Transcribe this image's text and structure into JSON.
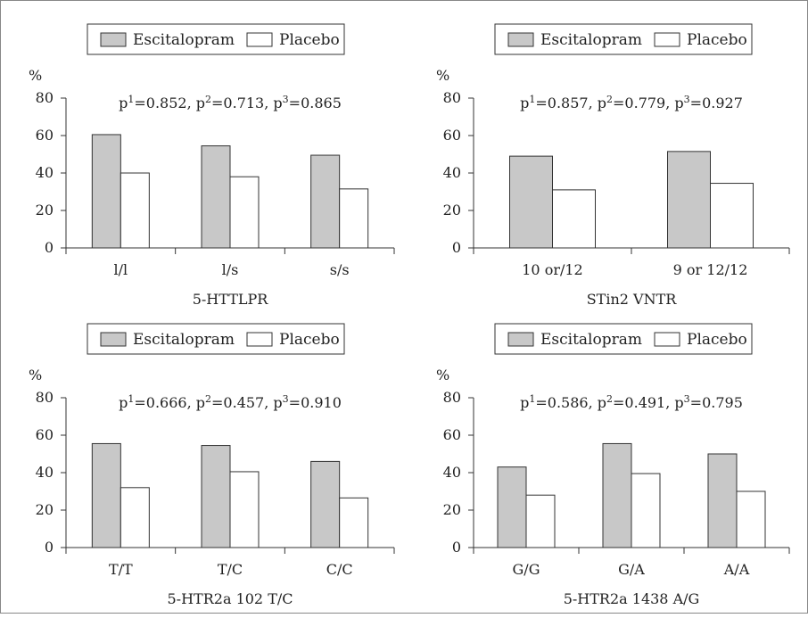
{
  "colors": {
    "escitalopram_fill": "#c8c8c8",
    "placebo_fill": "#ffffff",
    "stroke": "#333333",
    "border": "#888888"
  },
  "chart_data": [
    {
      "type": "bar",
      "unit_label": "%",
      "legend": [
        "Escitalopram",
        "Placebo"
      ],
      "legend_position": "top",
      "annotation": {
        "parts": [
          [
            "p",
            "1",
            "=0.852, "
          ],
          [
            "p",
            "2",
            "=0.713, "
          ],
          [
            "p",
            "3",
            "=0.865"
          ]
        ]
      },
      "categories": [
        "l/l",
        "l/s",
        "s/s"
      ],
      "series": [
        {
          "name": "Escitalopram",
          "values": [
            60.5,
            54.5,
            49.5
          ]
        },
        {
          "name": "Placebo",
          "values": [
            40,
            38,
            31.5
          ]
        }
      ],
      "xlabel": "5-HTTLPR",
      "ylim": [
        0,
        80
      ],
      "yticks": [
        0,
        20,
        40,
        60,
        80
      ],
      "grid": false
    },
    {
      "type": "bar",
      "unit_label": "%",
      "legend": [
        "Escitalopram",
        "Placebo"
      ],
      "legend_position": "top",
      "annotation": {
        "parts": [
          [
            "p",
            "1",
            "=0.857, "
          ],
          [
            "p",
            "2",
            "=0.779, "
          ],
          [
            "p",
            "3",
            "=0.927"
          ]
        ]
      },
      "categories": [
        "10 or/12",
        "9 or 12/12"
      ],
      "series": [
        {
          "name": "Escitalopram",
          "values": [
            49,
            51.5
          ]
        },
        {
          "name": "Placebo",
          "values": [
            31,
            34.5
          ]
        }
      ],
      "xlabel": "STin2 VNTR",
      "ylim": [
        0,
        80
      ],
      "yticks": [
        0,
        20,
        40,
        60,
        80
      ],
      "grid": false
    },
    {
      "type": "bar",
      "unit_label": "%",
      "legend": [
        "Escitalopram",
        "Placebo"
      ],
      "legend_position": "top",
      "annotation": {
        "parts": [
          [
            "p",
            "1",
            "=0.666, "
          ],
          [
            "p",
            "2",
            "=0.457, "
          ],
          [
            "p",
            "3",
            "=0.910"
          ]
        ]
      },
      "categories": [
        "T/T",
        "T/C",
        "C/C"
      ],
      "series": [
        {
          "name": "Escitalopram",
          "values": [
            55.5,
            54.5,
            46
          ]
        },
        {
          "name": "Placebo",
          "values": [
            32,
            40.5,
            26.5
          ]
        }
      ],
      "xlabel": "5-HTR2a 102 T/C",
      "ylim": [
        0,
        80
      ],
      "yticks": [
        0,
        20,
        40,
        60,
        80
      ],
      "grid": false
    },
    {
      "type": "bar",
      "unit_label": "%",
      "legend": [
        "Escitalopram",
        "Placebo"
      ],
      "legend_position": "top",
      "annotation": {
        "parts": [
          [
            "p",
            "1",
            "=0.586, "
          ],
          [
            "p",
            "2",
            "=0.491, "
          ],
          [
            "p",
            "3",
            "=0.795"
          ]
        ]
      },
      "categories": [
        "G/G",
        "G/A",
        "A/A"
      ],
      "series": [
        {
          "name": "Escitalopram",
          "values": [
            43,
            55.5,
            50
          ]
        },
        {
          "name": "Placebo",
          "values": [
            28,
            39.5,
            30
          ]
        }
      ],
      "xlabel": "5-HTR2a 1438 A/G",
      "ylim": [
        0,
        80
      ],
      "yticks": [
        0,
        20,
        40,
        60,
        80
      ],
      "grid": false
    }
  ]
}
